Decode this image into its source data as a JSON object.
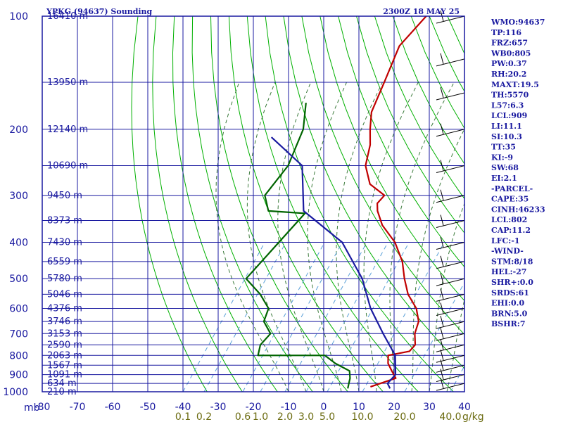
{
  "title": "YPKG (94637) Sounding",
  "valid_time": "2300Z 18 MAY 25",
  "indices": [
    "WMO:94637",
    "TP:116",
    "FRZ:657",
    "WB0:805",
    "PW:0.37",
    "RH:20.2",
    "MAXT:19.5",
    "TH:5570",
    "L57:6.3",
    "LCL:909",
    "LI:11.1",
    "SI:10.3",
    "TT:35",
    "KI:-9",
    "SW:68",
    "EI:2.1",
    "-PARCEL-",
    "CAPE:35",
    "CINH:46233",
    "LCL:802",
    "CAP:11.2",
    "LFC:-1",
    "-WIND-",
    "STM:8/18",
    "HEL:-27",
    "SHR+:0.0",
    "SRDS:61",
    "EHI:0.0",
    "BRN:5.0",
    "BSHR:7"
  ],
  "colors": {
    "frame": "#1a1aa0",
    "temperature": "#c00000",
    "dewpoint": "#006400",
    "parcel": "#1a1aa0",
    "dry_adiabat": "#00b000",
    "moist_adiabat": "#3a7a3a",
    "mixing_ratio": "#5aa0d8",
    "mr_label": "#6b6b10",
    "text": "#1a1aa0"
  },
  "chart_data": {
    "type": "line",
    "title": "YPKG (94637) Sounding",
    "pressure_unit_label": "mb",
    "mixing_ratio_unit_label": "g/kg",
    "pressure_ticks": [
      100,
      200,
      300,
      400,
      500,
      600,
      700,
      800,
      900,
      1000
    ],
    "temperature_ticks": [
      -80,
      -70,
      -60,
      -50,
      -40,
      -30,
      -20,
      -10,
      0,
      10,
      20,
      30,
      40
    ],
    "temperature_range": [
      -80,
      40
    ],
    "log_pressure_axis": true,
    "height_labels": [
      {
        "p": 100,
        "label": "16410 m"
      },
      {
        "p": 150,
        "label": "13950 m"
      },
      {
        "p": 200,
        "label": "12140 m"
      },
      {
        "p": 250,
        "label": "10690 m"
      },
      {
        "p": 300,
        "label": "9450 m"
      },
      {
        "p": 350,
        "label": "8373 m"
      },
      {
        "p": 400,
        "label": "7430 m"
      },
      {
        "p": 450,
        "label": "6559 m"
      },
      {
        "p": 500,
        "label": "5780 m"
      },
      {
        "p": 550,
        "label": "5046 m"
      },
      {
        "p": 600,
        "label": "4376 m"
      },
      {
        "p": 650,
        "label": "3746 m"
      },
      {
        "p": 700,
        "label": "3153 m"
      },
      {
        "p": 750,
        "label": "2590 m"
      },
      {
        "p": 800,
        "label": "2063 m"
      },
      {
        "p": 850,
        "label": "1567 m"
      },
      {
        "p": 900,
        "label": "1091 m"
      },
      {
        "p": 950,
        "label": "634 m"
      },
      {
        "p": 1000,
        "label": "210 m"
      }
    ],
    "mixing_ratio_labels": [
      {
        "t": -40,
        "label": "0.1"
      },
      {
        "t": -34,
        "label": "0.2"
      },
      {
        "t": -23,
        "label": "0.6"
      },
      {
        "t": -18,
        "label": "1.0"
      },
      {
        "t": -11,
        "label": "2.0"
      },
      {
        "t": -5,
        "label": "3.0"
      },
      {
        "t": 1,
        "label": "5.0"
      },
      {
        "t": 11,
        "label": "10.0"
      },
      {
        "t": 23,
        "label": "20.0"
      },
      {
        "t": 36,
        "label": "40.0"
      }
    ],
    "series": [
      {
        "points": [
          [
            -67,
            100
          ],
          [
            -67,
            120
          ],
          [
            -62,
            150
          ],
          [
            -58,
            180
          ],
          [
            -54,
            200
          ],
          [
            -50,
            220
          ],
          [
            -46,
            250
          ],
          [
            -40,
            280
          ],
          [
            -33,
            300
          ],
          [
            -33,
            315
          ],
          [
            -31,
            330
          ],
          [
            -26,
            360
          ],
          [
            -18,
            400
          ],
          [
            -11,
            450
          ],
          [
            -6,
            500
          ],
          [
            -1,
            550
          ],
          [
            5,
            600
          ],
          [
            9,
            650
          ],
          [
            11,
            700
          ],
          [
            14,
            750
          ],
          [
            14,
            780
          ],
          [
            9,
            800
          ],
          [
            11,
            840
          ],
          [
            14,
            880
          ],
          [
            17,
            920
          ],
          [
            14,
            950
          ],
          [
            12,
            970
          ]
        ]
      },
      {
        "points": [
          [
            -79,
            170
          ],
          [
            -73,
            200
          ],
          [
            -68,
            250
          ],
          [
            -67,
            300
          ],
          [
            -62,
            330
          ],
          [
            -51,
            335
          ],
          [
            -51,
            500
          ],
          [
            -43,
            550
          ],
          [
            -37,
            600
          ],
          [
            -35,
            650
          ],
          [
            -30,
            700
          ],
          [
            -30,
            750
          ],
          [
            -28,
            800
          ],
          [
            -9,
            800
          ],
          [
            -4,
            840
          ],
          [
            2,
            880
          ],
          [
            4,
            920
          ],
          [
            5,
            950
          ],
          [
            6,
            980
          ]
        ]
      },
      {
        "points": [
          [
            -80,
            210
          ],
          [
            -64,
            250
          ],
          [
            -52,
            330
          ],
          [
            -33,
            400
          ],
          [
            -18,
            500
          ],
          [
            -8,
            600
          ],
          [
            2,
            700
          ],
          [
            11,
            800
          ],
          [
            16,
            900
          ],
          [
            16,
            950
          ],
          [
            18,
            980
          ]
        ]
      }
    ]
  }
}
